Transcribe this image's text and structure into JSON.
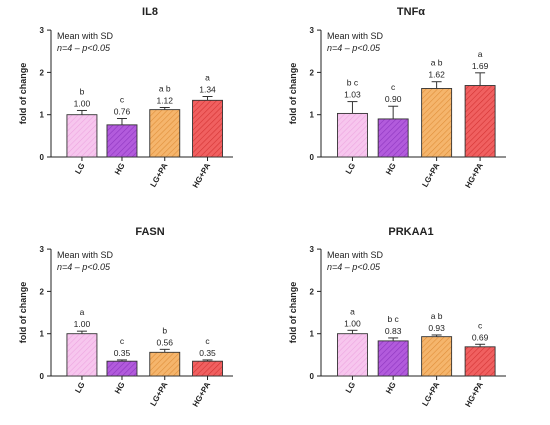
{
  "legend_text": "Mean with SD",
  "colors": {
    "bar_fills": [
      "#f7c6ee",
      "#b25bdc",
      "#f5b56c",
      "#f06060"
    ],
    "bar_hatch": [
      "#eda6e0",
      "#8e35c0",
      "#e08f3a",
      "#d43434"
    ],
    "error_bar": "#333333"
  },
  "chart_data": [
    {
      "type": "bar",
      "title": "IL8",
      "ylabel": "fold of change",
      "note_n": "n=4 – p<0.05",
      "categories": [
        "LG",
        "HG",
        "LG+PA",
        "HG+PA"
      ],
      "values": [
        1.0,
        0.76,
        1.12,
        1.34
      ],
      "value_labels": [
        "1.00",
        "0.76",
        "1.12",
        "1.34"
      ],
      "errors": [
        0.1,
        0.15,
        0.05,
        0.09
      ],
      "letters": [
        "b",
        "c",
        "a b",
        "a"
      ],
      "ylim": [
        0,
        3
      ],
      "yticks": [
        "0",
        "1",
        "2",
        "3"
      ]
    },
    {
      "type": "bar",
      "title": "TNFα",
      "ylabel": "fold of change",
      "note_n": "n=4 – p<0.05",
      "categories": [
        "LG",
        "HG",
        "LG+PA",
        "HG+PA"
      ],
      "values": [
        1.03,
        0.9,
        1.62,
        1.69
      ],
      "value_labels": [
        "1.03",
        "0.90",
        "1.62",
        "1.69"
      ],
      "errors": [
        0.28,
        0.3,
        0.16,
        0.3
      ],
      "letters": [
        "b c",
        "c",
        "a b",
        "a"
      ],
      "ylim": [
        0,
        3
      ],
      "yticks": [
        "0",
        "1",
        "2",
        "3"
      ]
    },
    {
      "type": "bar",
      "title": "FASN",
      "ylabel": "fold of change",
      "note_n": "n=4 – p<0.05",
      "categories": [
        "LG",
        "HG",
        "LG+PA",
        "HG+PA"
      ],
      "values": [
        1.0,
        0.35,
        0.56,
        0.35
      ],
      "value_labels": [
        "1.00",
        "0.35",
        "0.56",
        "0.35"
      ],
      "errors": [
        0.06,
        0.03,
        0.07,
        0.03
      ],
      "letters": [
        "a",
        "c",
        "b",
        "c"
      ],
      "ylim": [
        0,
        3
      ],
      "yticks": [
        "0",
        "1",
        "2",
        "3"
      ]
    },
    {
      "type": "bar",
      "title": "PRKAA1",
      "ylabel": "fold of change",
      "note_n": "n=4 – p<0.05",
      "categories": [
        "LG",
        "HG",
        "LG+PA",
        "HG+PA"
      ],
      "values": [
        1.0,
        0.83,
        0.93,
        0.69
      ],
      "value_labels": [
        "1.00",
        "0.83",
        "0.93",
        "0.69"
      ],
      "errors": [
        0.08,
        0.07,
        0.04,
        0.06
      ],
      "letters": [
        "a",
        "b c",
        "a b",
        "c"
      ],
      "ylim": [
        0,
        3
      ],
      "yticks": [
        "0",
        "1",
        "2",
        "3"
      ]
    }
  ]
}
